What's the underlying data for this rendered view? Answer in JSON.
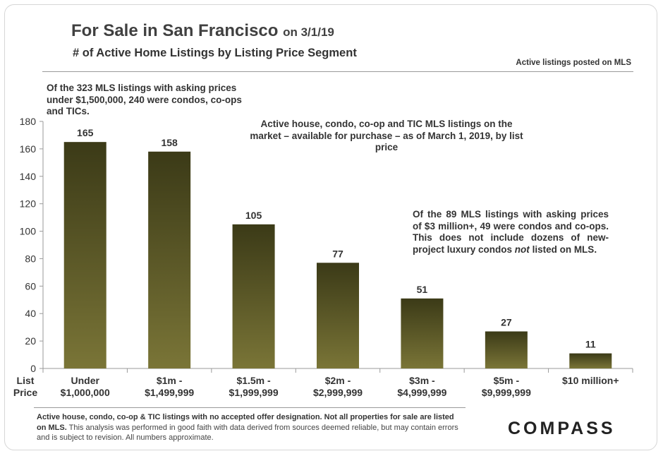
{
  "header": {
    "title_main": "For Sale in San Francisco",
    "title_date": "on 3/1/19",
    "subtitle": "# of Active Home Listings by Listing Price Segment",
    "source_note": "Active listings  posted on MLS"
  },
  "notes": {
    "left": "Of the 323 MLS listings with asking prices under $1,500,000, 240 were condos, co-ops and TICs.",
    "center": "Active house, condo, co-op and TIC MLS listings on the market – available for purchase – as of March 1, 2019, by list price",
    "right_part1": "Of the 89 MLS listings with asking prices of $3 million+, 49 were condos and co-ops. This does not include dozens of new-project luxury condos",
    "right_emph": "not",
    "right_part2": "listed on MLS."
  },
  "chart_data": {
    "type": "bar",
    "title": "# of Active Home Listings by Listing Price Segment",
    "xlabel": "List Price",
    "ylabel": "",
    "ylim": [
      0,
      180
    ],
    "yticks": [
      0,
      20,
      40,
      60,
      80,
      100,
      120,
      140,
      160,
      180
    ],
    "categories": [
      [
        "Under",
        "$1,000,000"
      ],
      [
        "$1m -",
        "$1,499,999"
      ],
      [
        "$1.5m -",
        "$1,999,999"
      ],
      [
        "$2m -",
        "$2,999,999"
      ],
      [
        "$3m -",
        "$4,999,999"
      ],
      [
        "$5m -",
        "$9,999,999"
      ],
      [
        "$10 million+"
      ]
    ],
    "values": [
      165,
      158,
      105,
      77,
      51,
      27,
      11
    ],
    "x_axis_title": [
      "List",
      "Price"
    ],
    "bar_color_top": "#3b3a17",
    "bar_color_bottom": "#7a7537"
  },
  "footer": {
    "bold_text": "Active house, condo, co-op & TIC listings with no accepted offer designation. Not all properties for sale are listed on MLS.",
    "regular_text": "This analysis was performed in good faith with data derived from sources deemed reliable, but may contain errors and is subject to revision. All numbers approximate."
  },
  "logo": {
    "text": "COMPASS"
  }
}
